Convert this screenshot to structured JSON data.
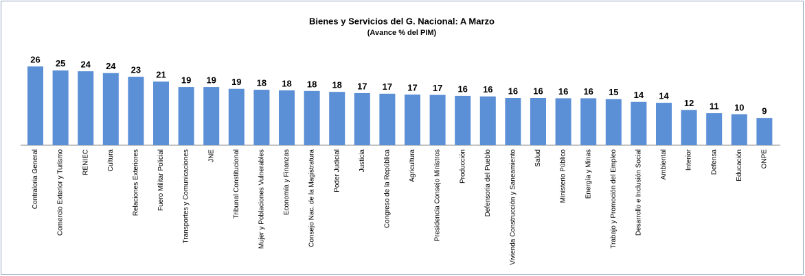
{
  "chart_data": {
    "type": "bar",
    "title": "Bienes y Servicios del G. Nacional:  A Marzo",
    "subtitle": "(Avance % del PIM)",
    "color": "#5b8fd6",
    "categories": [
      "Contraloria General",
      "Comercio Exterior y Turismo",
      "RENIEC",
      "Cultura",
      "Relaciones Exteriores",
      "Fuero Militar Policial",
      "Transportes y Comunicaciones",
      "JNE",
      "Tribunal Constitucional",
      "Mujer y Poblaciones Vulnerables",
      "Economía y Finanzas",
      "Consejo Nac. de la Magistratura",
      "Poder Judicial",
      "Justicia",
      "Congreso de la República",
      "Agricultura",
      "Presidencia Consejo Ministros",
      "Producción",
      "Defensoria del Pueblo",
      "Vivienda Construcción y Saneamiento",
      "Salud",
      "Ministerio Público",
      "Energía y Minas",
      "Trabajo y Promoción del Empleo",
      "Desarrollo e Inclusión Social",
      "Ambiental",
      "Interior",
      "Defensa",
      "Educación",
      "ONPE"
    ],
    "values": [
      26.0,
      24.7,
      24.4,
      23.8,
      22.6,
      21.0,
      19.2,
      19.2,
      18.6,
      18.3,
      18.1,
      17.9,
      17.6,
      17.2,
      17.0,
      16.7,
      16.6,
      16.3,
      16.1,
      15.6,
      15.6,
      15.5,
      15.5,
      15.2,
      14.3,
      14.0,
      11.6,
      10.6,
      10.2,
      9.0
    ],
    "value_labels": [
      "26",
      "25",
      "24",
      "24",
      "23",
      "21",
      "19",
      "19",
      "19",
      "18",
      "18",
      "18",
      "18",
      "17",
      "17",
      "17",
      "17",
      "16",
      "16",
      "16",
      "16",
      "16",
      "16",
      "15",
      "14",
      "14",
      "12",
      "11",
      "10",
      "9"
    ]
  }
}
